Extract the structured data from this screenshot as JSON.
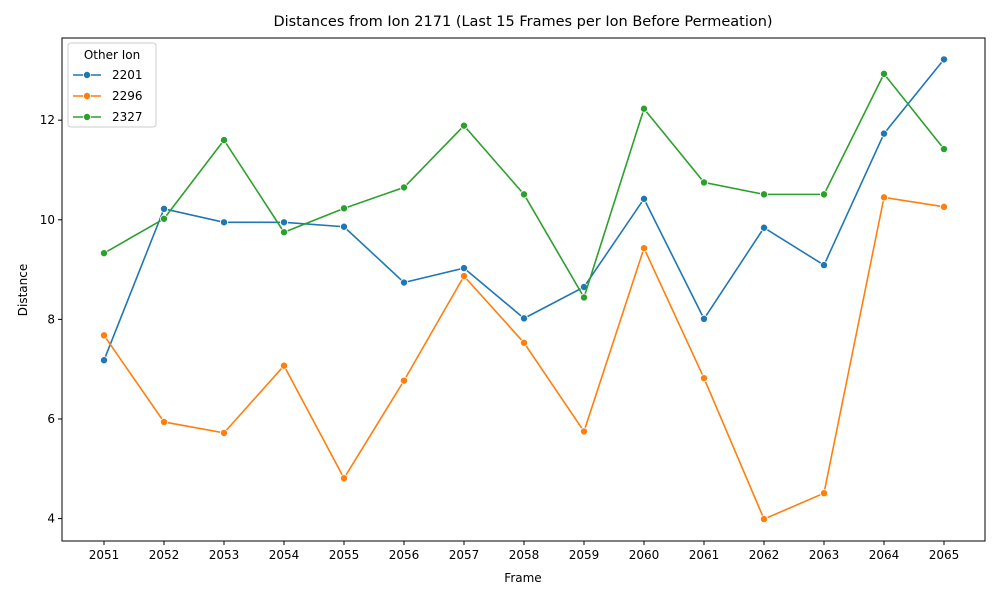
{
  "chart_data": {
    "type": "line",
    "title": "Distances from Ion 2171 (Last 15 Frames per Ion Before Permeation)",
    "xlabel": "Frame",
    "ylabel": "Distance",
    "categories": [
      "2051",
      "2052",
      "2053",
      "2054",
      "2055",
      "2056",
      "2057",
      "2058",
      "2059",
      "2060",
      "2061",
      "2062",
      "2063",
      "2064",
      "2065"
    ],
    "ylim": [
      3.55,
      13.65
    ],
    "yticks": [
      4,
      6,
      8,
      10,
      12
    ],
    "grid": false,
    "legend": {
      "title": "Other Ion",
      "placement": "top-left"
    },
    "series": [
      {
        "name": "2201",
        "color": "#1f77b4",
        "values": [
          7.18,
          10.22,
          9.95,
          9.95,
          9.86,
          8.74,
          9.03,
          8.02,
          8.65,
          10.42,
          8.01,
          9.84,
          9.09,
          11.73,
          13.22
        ]
      },
      {
        "name": "2296",
        "color": "#ff7f0e",
        "values": [
          7.68,
          5.94,
          5.72,
          7.07,
          4.81,
          6.77,
          8.87,
          7.53,
          5.75,
          9.43,
          6.82,
          3.99,
          4.51,
          10.45,
          10.26
        ]
      },
      {
        "name": "2327",
        "color": "#2ca02c",
        "values": [
          9.33,
          10.02,
          11.6,
          9.75,
          10.23,
          10.65,
          11.89,
          10.51,
          8.44,
          12.23,
          10.75,
          10.51,
          10.51,
          12.93,
          11.42
        ]
      }
    ]
  }
}
